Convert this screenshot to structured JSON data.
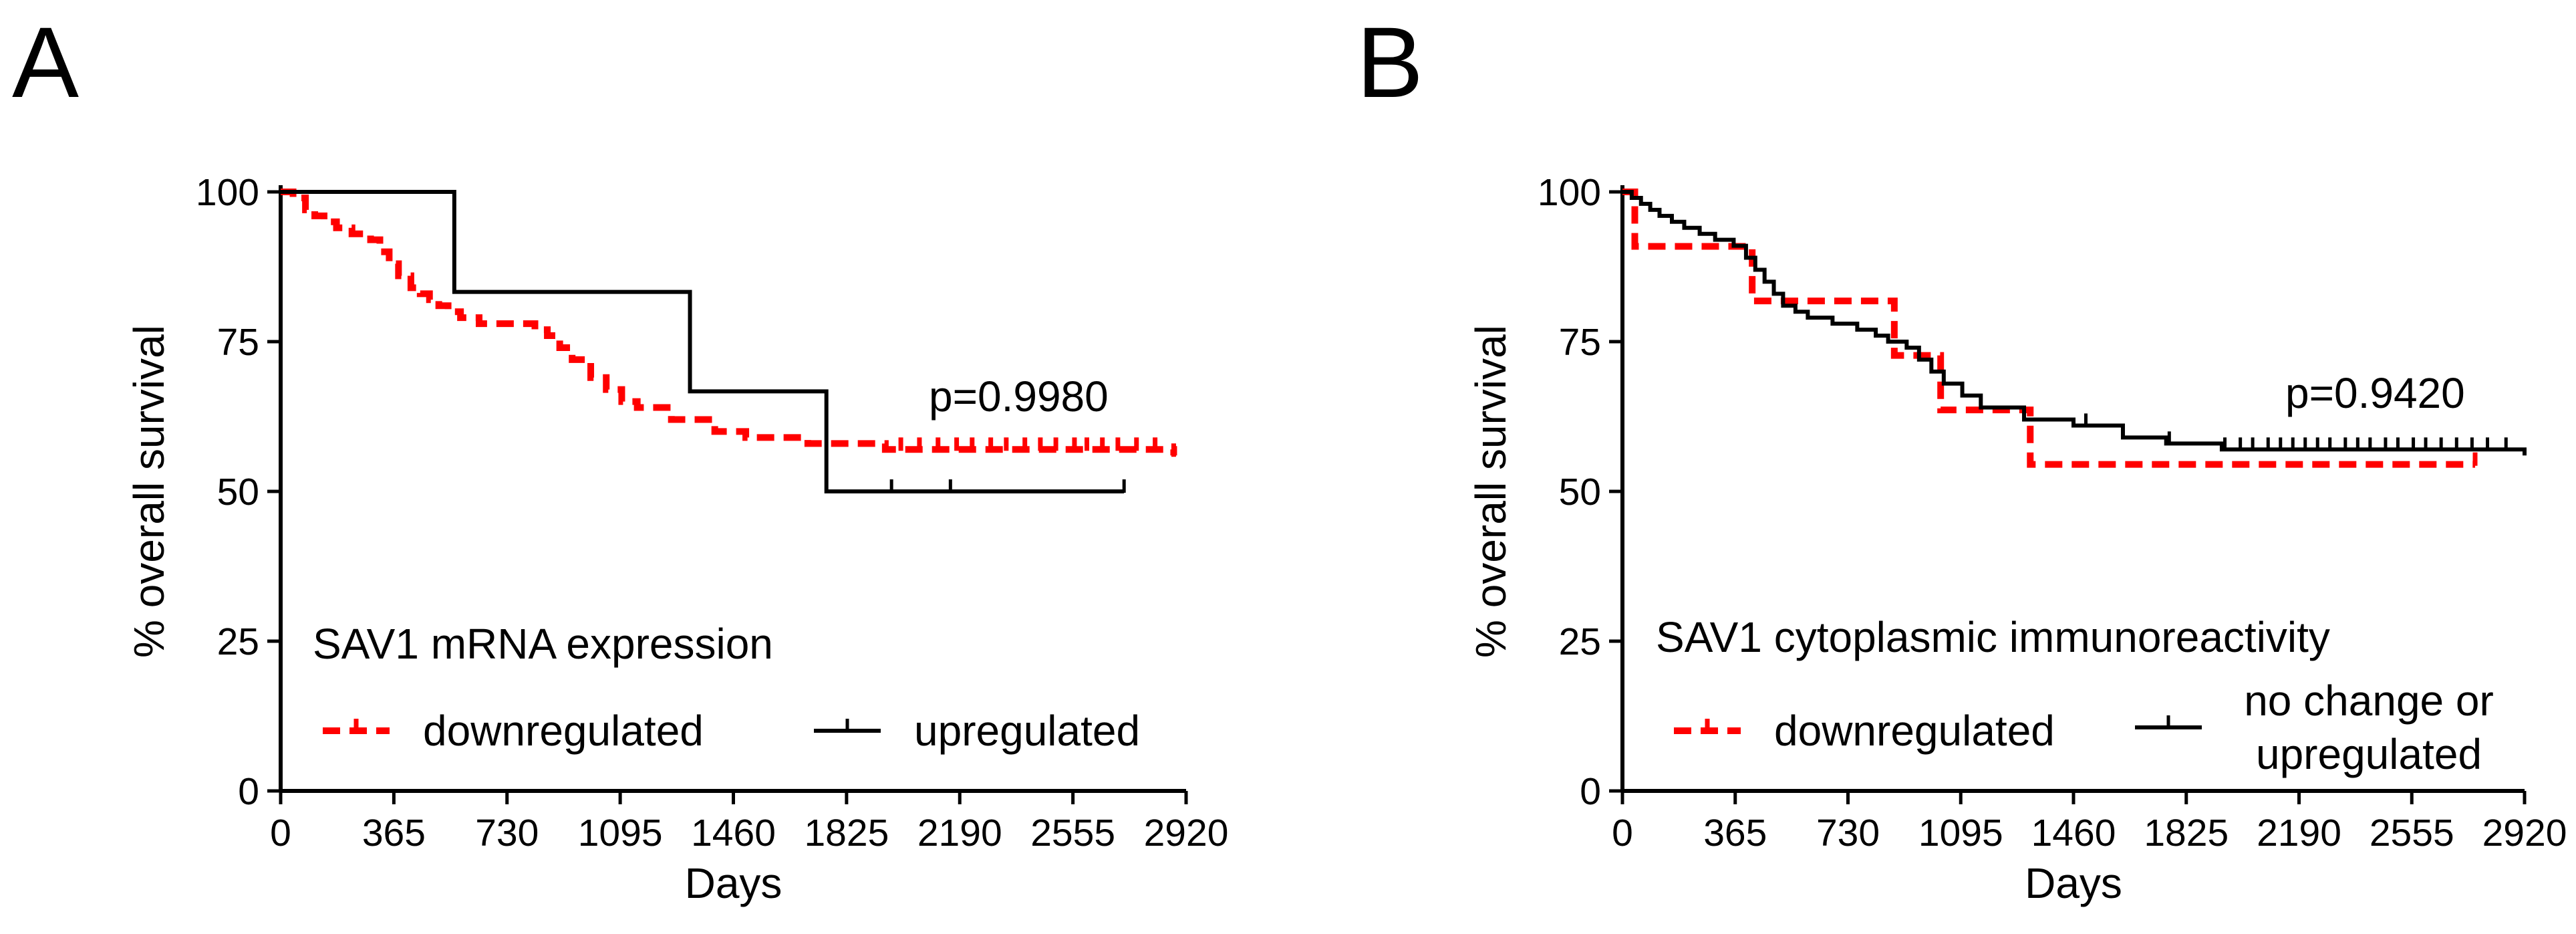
{
  "chart_data": [
    {
      "type": "line",
      "subtype": "kaplan-meier",
      "panel": "A",
      "legend_title": "SAV1 mRNA expression",
      "annotation": "p=0.9980",
      "xlabel": "Days",
      "ylabel": "% overall survival",
      "xlim": [
        0,
        2920
      ],
      "ylim": [
        0,
        100
      ],
      "xticks": [
        "0",
        "365",
        "730",
        "1095",
        "1460",
        "1825",
        "2190",
        "2555",
        "2920"
      ],
      "yticks": [
        "0",
        "25",
        "50",
        "75",
        "100"
      ],
      "series": [
        {
          "name": "downregulated",
          "color": "#ff0000",
          "style": "dashed",
          "x": [
            0,
            40,
            80,
            110,
            140,
            180,
            230,
            290,
            320,
            350,
            380,
            420,
            450,
            480,
            510,
            540,
            580,
            640,
            720,
            820,
            860,
            900,
            940,
            1000,
            1050,
            1100,
            1150,
            1260,
            1400,
            1500,
            1700,
            1950,
            2880
          ],
          "y": [
            100,
            99,
            97,
            96,
            95,
            94,
            93,
            92,
            90,
            88,
            86,
            84,
            83,
            82,
            81,
            80,
            79,
            78,
            78,
            77,
            76,
            74,
            72,
            69,
            67,
            65,
            64,
            62,
            60,
            59,
            58,
            57,
            56
          ],
          "censor_x": [
            2000,
            2060,
            2120,
            2180,
            2230,
            2290,
            2340,
            2400,
            2450,
            2500,
            2560,
            2600,
            2650,
            2700,
            2760,
            2820,
            2880
          ]
        },
        {
          "name": "upregulated",
          "color": "#000000",
          "style": "solid",
          "x": [
            0,
            560,
            1320,
            1760,
            2720
          ],
          "y": [
            100,
            83.3,
            66.7,
            50,
            50
          ],
          "censor_x": [
            1970,
            2160,
            2720
          ]
        }
      ]
    },
    {
      "type": "line",
      "subtype": "kaplan-meier",
      "panel": "B",
      "legend_title": "SAV1 cytoplasmic immunoreactivity",
      "annotation": "p=0.9420",
      "xlabel": "Days",
      "ylabel": "% overall survival",
      "xlim": [
        0,
        2920
      ],
      "ylim": [
        0,
        100
      ],
      "xticks": [
        "0",
        "365",
        "730",
        "1095",
        "1460",
        "1825",
        "2190",
        "2555",
        "2920"
      ],
      "yticks": [
        "0",
        "25",
        "50",
        "75",
        "100"
      ],
      "series": [
        {
          "name": "downregulated",
          "color": "#ff0000",
          "style": "dashed",
          "x": [
            0,
            40,
            420,
            880,
            1030,
            1320,
            2760
          ],
          "y": [
            100,
            90.9,
            81.8,
            72.7,
            63.6,
            54.5,
            54.5
          ],
          "censor_x": [
            2760
          ]
        },
        {
          "name": "no change or upregulated",
          "color": "#000000",
          "style": "solid",
          "x": [
            0,
            30,
            60,
            90,
            120,
            160,
            200,
            250,
            300,
            360,
            400,
            430,
            460,
            490,
            520,
            560,
            600,
            680,
            760,
            820,
            860,
            920,
            960,
            1000,
            1040,
            1100,
            1160,
            1300,
            1460,
            1620,
            1760,
            1940,
            2920
          ],
          "y": [
            100,
            99,
            98,
            97,
            96,
            95,
            94,
            93,
            92,
            91,
            89,
            87,
            85,
            83,
            81,
            80,
            79,
            78,
            77,
            76,
            75,
            74,
            72,
            70,
            68,
            66,
            64,
            62,
            61,
            59,
            58,
            57,
            56
          ],
          "censor_x": [
            1500,
            1770,
            1950,
            2000,
            2040,
            2090,
            2130,
            2170,
            2210,
            2250,
            2290,
            2340,
            2380,
            2420,
            2470,
            2510,
            2560,
            2600,
            2650,
            2700,
            2750,
            2800,
            2860
          ]
        }
      ]
    }
  ]
}
